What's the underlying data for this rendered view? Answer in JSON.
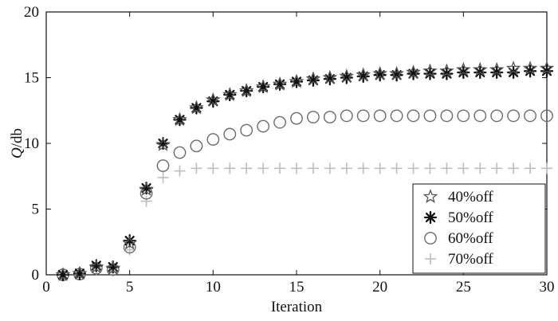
{
  "chart_data": {
    "type": "scatter",
    "title": "",
    "xlabel": "Iteration",
    "ylabel_italic": "Q",
    "ylabel_rest": "/db",
    "xlim": [
      0,
      30
    ],
    "ylim": [
      0,
      20
    ],
    "xticks": [
      0,
      5,
      10,
      15,
      20,
      25,
      30
    ],
    "yticks": [
      0,
      5,
      10,
      15,
      20
    ],
    "grid": false,
    "legend_position": "bottom-right",
    "x": [
      1,
      2,
      3,
      4,
      5,
      6,
      7,
      8,
      9,
      10,
      11,
      12,
      13,
      14,
      15,
      16,
      17,
      18,
      19,
      20,
      21,
      22,
      23,
      24,
      25,
      26,
      27,
      28,
      29,
      30
    ],
    "series": [
      {
        "name": "40%off",
        "marker": "star",
        "color": "#555555",
        "values": [
          0,
          0.1,
          0.6,
          0.5,
          2.4,
          6.5,
          9.9,
          11.8,
          12.7,
          13.3,
          13.7,
          14.0,
          14.3,
          14.5,
          14.7,
          14.9,
          15.0,
          15.1,
          15.2,
          15.3,
          15.3,
          15.4,
          15.5,
          15.5,
          15.6,
          15.6,
          15.6,
          15.7,
          15.7,
          15.7
        ]
      },
      {
        "name": "50%off",
        "marker": "asterisk",
        "color": "#111111",
        "values": [
          0,
          0.1,
          0.7,
          0.6,
          2.6,
          6.6,
          10.0,
          11.8,
          12.7,
          13.2,
          13.7,
          14.0,
          14.3,
          14.5,
          14.7,
          14.8,
          14.9,
          15.0,
          15.1,
          15.2,
          15.2,
          15.3,
          15.3,
          15.3,
          15.4,
          15.4,
          15.4,
          15.4,
          15.5,
          15.5
        ]
      },
      {
        "name": "60%off",
        "marker": "circle",
        "color": "#6b6b6b",
        "values": [
          0,
          0.05,
          0.5,
          0.4,
          2.1,
          6.2,
          8.3,
          9.3,
          9.8,
          10.3,
          10.7,
          11.0,
          11.3,
          11.6,
          11.9,
          12.0,
          12.0,
          12.1,
          12.1,
          12.1,
          12.1,
          12.1,
          12.1,
          12.1,
          12.1,
          12.1,
          12.1,
          12.1,
          12.1,
          12.1
        ]
      },
      {
        "name": "70%off",
        "marker": "plus",
        "color": "#bdbdbd",
        "values": [
          0,
          0.05,
          0.4,
          0.3,
          1.9,
          5.6,
          7.4,
          7.9,
          8.1,
          8.1,
          8.1,
          8.1,
          8.1,
          8.1,
          8.1,
          8.1,
          8.1,
          8.1,
          8.1,
          8.1,
          8.1,
          8.1,
          8.1,
          8.1,
          8.1,
          8.1,
          8.1,
          8.1,
          8.1,
          8.1
        ]
      }
    ]
  }
}
